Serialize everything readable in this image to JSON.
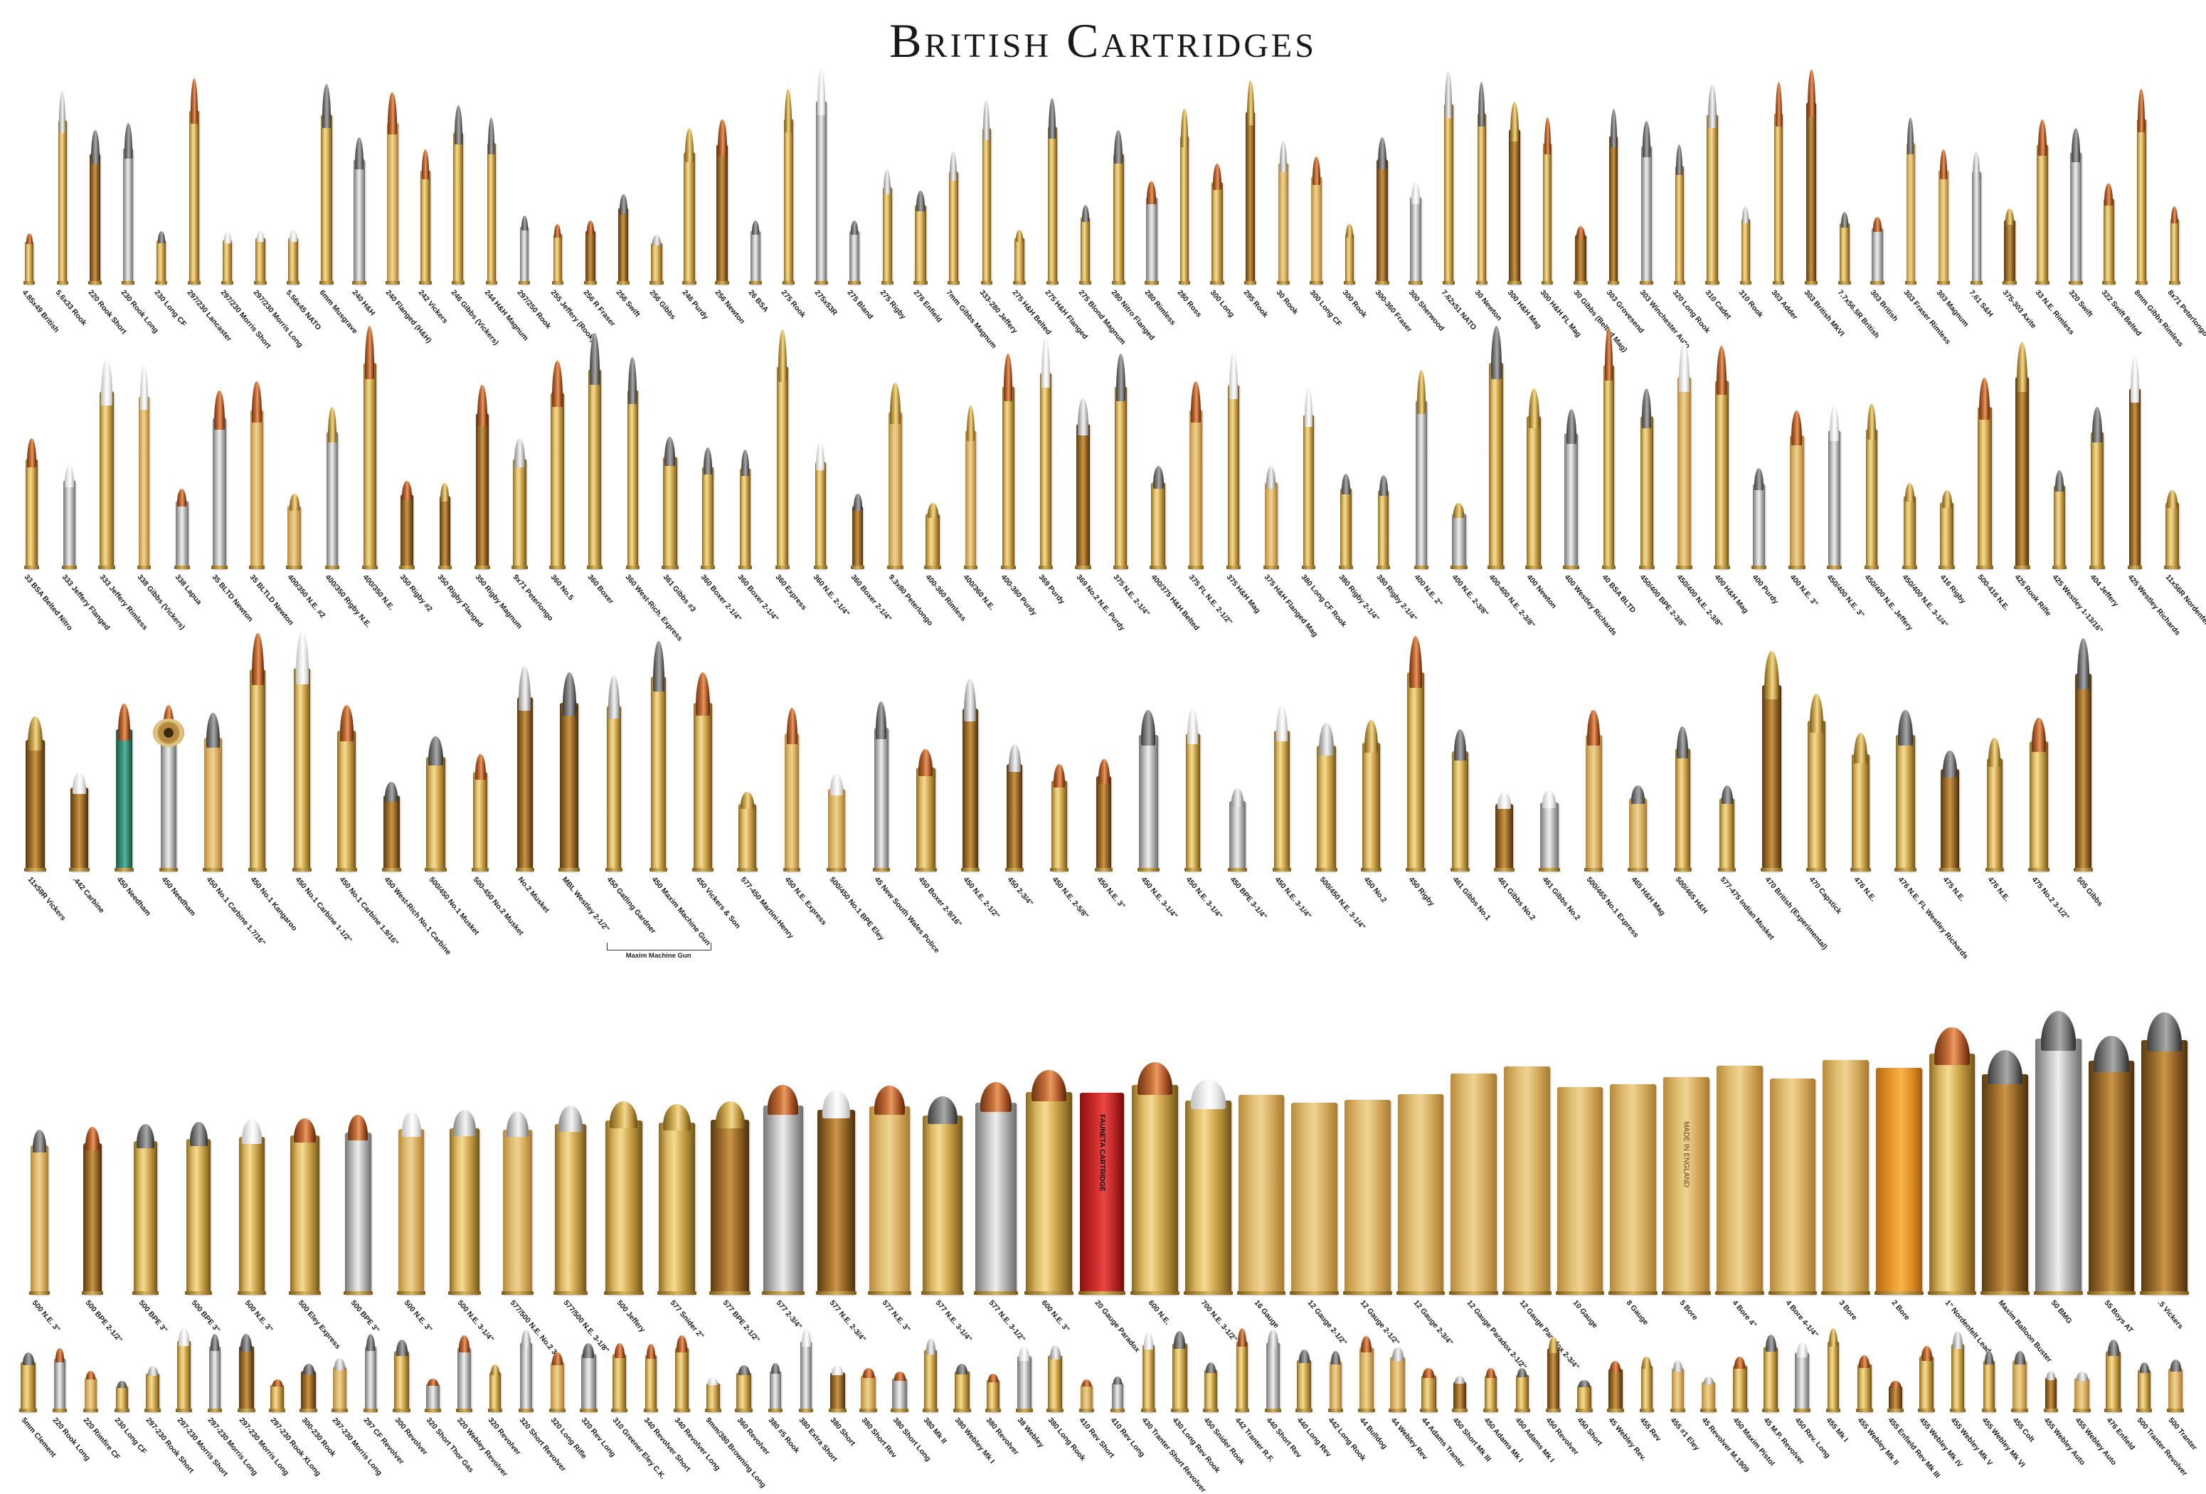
{
  "title": "British Cartridges",
  "rows": [
    {
      "id": "row1",
      "items": [
        {
          "label": "4.85x49 British"
        },
        {
          "label": "5.6x33 Rook"
        },
        {
          "label": "220 Rook Short"
        },
        {
          "label": "230 Rook Long"
        },
        {
          "label": "230 Long CF"
        },
        {
          "label": "297/230 Lancaster"
        },
        {
          "label": "297/230 Morris Short"
        },
        {
          "label": "297/230 Morris Long"
        },
        {
          "label": "5.56x45 NATO"
        },
        {
          "label": "6mm Musgrave"
        },
        {
          "label": "240 H&H"
        },
        {
          "label": "240 Flanged (H&H)"
        },
        {
          "label": "242 Vickers"
        },
        {
          "label": "246 Gibbs (Vickers)"
        },
        {
          "label": "244 H&H Magnum"
        },
        {
          "label": "297/250 Rook"
        },
        {
          "label": "255 Jeffery (Rook)"
        },
        {
          "label": "256 R Fraser"
        },
        {
          "label": "256 Swift"
        },
        {
          "label": "256 Gibbs"
        },
        {
          "label": "246 Purdy"
        },
        {
          "label": "256 Newton"
        },
        {
          "label": "26 BSA"
        },
        {
          "label": "275 Rook"
        },
        {
          "label": "275x53R"
        },
        {
          "label": "275 Bland"
        },
        {
          "label": "275 Rigby"
        },
        {
          "label": "276 Enfield"
        },
        {
          "label": "7mm Gibbs Magnum"
        },
        {
          "label": "333-280 Jeffery"
        },
        {
          "label": "275 H&H Belted"
        },
        {
          "label": "275 H&H Flanged"
        },
        {
          "label": "275 Blond Magnum"
        },
        {
          "label": "280 Nitro Flanged"
        },
        {
          "label": "280 Rimless"
        },
        {
          "label": "280 Ross"
        },
        {
          "label": "300 Long"
        },
        {
          "label": "295 Rook"
        },
        {
          "label": "30 Rook"
        },
        {
          "label": "300 Long CF"
        },
        {
          "label": "300 Rook"
        },
        {
          "label": "300-360 Fraser"
        },
        {
          "label": "300 Sherwood"
        },
        {
          "label": "7.62x51 NATO"
        },
        {
          "label": "30 Newton"
        },
        {
          "label": "300 H&H Mag"
        },
        {
          "label": "300 H&H FL Mag"
        },
        {
          "label": "30 Gibbs (Belted Mag)"
        },
        {
          "label": "303 Grovesend"
        },
        {
          "label": "303 Winchester Auto"
        },
        {
          "label": "320 Long Rook"
        },
        {
          "label": "310 Cadet"
        },
        {
          "label": "310 Rook"
        },
        {
          "label": "303 Adder"
        },
        {
          "label": "303 British MkVI"
        },
        {
          "label": "7.7x56.5R British"
        },
        {
          "label": "303 British"
        },
        {
          "label": "303 Fraser Rimless"
        },
        {
          "label": "303 Magnum"
        },
        {
          "label": "7.61 S&H"
        },
        {
          "label": "375-303 Axite"
        },
        {
          "label": "33 N.E. Rimless"
        },
        {
          "label": "320 Swift"
        },
        {
          "label": "322 Swift Belted"
        },
        {
          "label": "8mm Gibbs Rimless"
        },
        {
          "label": "8x71 Peterlongo"
        }
      ]
    },
    {
      "id": "row2",
      "items": [
        {
          "label": "33 BSA Belted Nitro"
        },
        {
          "label": "333 Jeffery Flanged"
        },
        {
          "label": "333 Jeffery Rimless"
        },
        {
          "label": "338 Gibbs (Vickers)"
        },
        {
          "label": "338 Lapua"
        },
        {
          "label": "35 BLTD Newton"
        },
        {
          "label": "35 BLTLD Newton"
        },
        {
          "label": "400/350 N.E. #2"
        },
        {
          "label": "400/350 Rigby N.E."
        },
        {
          "label": "400/350 N.E."
        },
        {
          "label": "350 Rigby #2"
        },
        {
          "label": "350 Rigby Flanged"
        },
        {
          "label": "350 Rigby Magnum"
        },
        {
          "label": "9x71 Peterlongo"
        },
        {
          "label": "360 No.5"
        },
        {
          "label": "360 Boxer"
        },
        {
          "label": "360 West-Rich. Express"
        },
        {
          "label": "361 Gibbs #3"
        },
        {
          "label": "360 Boxer 2-1/4\""
        },
        {
          "label": "360 Boxer 2-1/4\""
        },
        {
          "label": "360 Express"
        },
        {
          "label": "360 N.E. 2-1/4\""
        },
        {
          "label": "360 Boxer 2-1/4\""
        },
        {
          "label": "9.3x80 Peterlongo"
        },
        {
          "label": "400-360 Rimless"
        },
        {
          "label": "400/360 N.E."
        },
        {
          "label": "400-360 Purdy"
        },
        {
          "label": "369 Purdy"
        },
        {
          "label": "369 No.2 N.E. Purdy"
        },
        {
          "label": "375 N.E. 2-1/4\""
        },
        {
          "label": "400/375 H&H Belted"
        },
        {
          "label": "375 FL N.E. 2-1/2\""
        },
        {
          "label": "375 H&H Mag"
        },
        {
          "label": "375 H&H Flanged Mag"
        },
        {
          "label": "380 Long CF Rook"
        },
        {
          "label": "380 Rigby 2-1/4\""
        },
        {
          "label": "380 Rigby 2-1/4\""
        },
        {
          "label": "400 N.E. 2\""
        },
        {
          "label": "400 N.E. 2-3/8\""
        },
        {
          "label": "400-400 N.E. 2-3/8\""
        },
        {
          "label": "400 Newton"
        },
        {
          "label": "400 Westley Richards"
        },
        {
          "label": "40 BSA BLTD"
        },
        {
          "label": "450/400 BPE 2-3/8\""
        },
        {
          "label": "450/400 N.E. 2-3/8\""
        },
        {
          "label": "400 H&H Mag"
        },
        {
          "label": "400 Purdy"
        },
        {
          "label": "400 N.E. 3\""
        },
        {
          "label": "450/400 N.E. 3\""
        },
        {
          "label": "450/400 N.E. Jeffery"
        },
        {
          "label": "450/400 N.E. 3-1/4\""
        },
        {
          "label": "416 Rigby"
        },
        {
          "label": "500-416 N.E."
        },
        {
          "label": "425 Rook Rifle"
        },
        {
          "label": "425 Westley 1-13/16\""
        },
        {
          "label": "404 Jeffery"
        },
        {
          "label": "425 Westley Richards"
        },
        {
          "label": "11x56R Nordenfelt"
        }
      ]
    },
    {
      "id": "row3",
      "items": [
        {
          "label": "11x59R Vickers"
        },
        {
          "label": ".442 Carbine"
        },
        {
          "label": "450 Needham"
        },
        {
          "label": "450 Needham"
        },
        {
          "label": "450 No.1 Carbine 1.7/16\""
        },
        {
          "label": "450 No.1 Kangaroo"
        },
        {
          "label": "450 No.1 Carbine 1-1/2\""
        },
        {
          "label": "450 No.1 Carbine 1.9/16\""
        },
        {
          "label": "450 West-Rich No.1 Carbine"
        },
        {
          "label": "500/450 No.1 Musket"
        },
        {
          "label": "500-450 No.2 Musket"
        },
        {
          "label": "No.2 Musket"
        },
        {
          "label": "MBL Westley 2-1/2\""
        },
        {
          "label": "450 Gatling Gardner"
        },
        {
          "label": "450 Maxim Machine Gun"
        },
        {
          "label": "450 Vickers & Son"
        },
        {
          "label": "577-450 Martini-Henry"
        },
        {
          "label": "450 N.E. Express"
        },
        {
          "label": "500/450 No.1 BPE Eley"
        },
        {
          "label": "45 New South Wales Police"
        },
        {
          "label": "450 Boxer 2-9/16\""
        },
        {
          "label": "450 N.E. 2-1/2\""
        },
        {
          "label": "450 2-3/4\""
        },
        {
          "label": "450 N.E. 2-5/8\""
        },
        {
          "label": "450 N.E. 3\""
        },
        {
          "label": "450 N.E. 3-1/4\""
        },
        {
          "label": "450 N.E. 3-1/4\""
        },
        {
          "label": "450 BPE 3-1/4\""
        },
        {
          "label": "450 N.E. 3-1/4\""
        },
        {
          "label": "500/450 N.E. 3-1/4\""
        },
        {
          "label": "450 No.2"
        },
        {
          "label": "450 Rigby"
        },
        {
          "label": "461 Gibbs No.1"
        },
        {
          "label": "461 Gibbs No.2"
        },
        {
          "label": "461 Gibbs No.2"
        },
        {
          "label": "500/465 No.1 Express"
        },
        {
          "label": "465 H&H Mag"
        },
        {
          "label": "500/465 H&H"
        },
        {
          "label": "577-475 Indian Musket"
        },
        {
          "label": "470 British (Experimental)"
        },
        {
          "label": "470 Capstick"
        },
        {
          "label": "476 N.E."
        },
        {
          "label": "476 N.E. FL Westley Richards"
        },
        {
          "label": "475 N.E."
        },
        {
          "label": "476 N.E."
        },
        {
          "label": "475 No.2 3-1/2\""
        },
        {
          "label": "505 Gibbs"
        }
      ],
      "bracket_label": "Maxim Machine Gun"
    },
    {
      "id": "row4",
      "items": [
        {
          "label": "500 N.E. 3\""
        },
        {
          "label": "500 BPE 2-1/2\""
        },
        {
          "label": "500 BPE 3\""
        },
        {
          "label": "500 BPE 3\""
        },
        {
          "label": "500 N.E. 3\""
        },
        {
          "label": "500 Eley Express"
        },
        {
          "label": "500 BPE 3\""
        },
        {
          "label": "500 N.E. 3\""
        },
        {
          "label": "500 N.E. 3-1/4\""
        },
        {
          "label": "577/500 N.E. No.2 3\""
        },
        {
          "label": "577/500 N.E. 3-1/8\""
        },
        {
          "label": "500 Jeffery"
        },
        {
          "label": "577 Snider 2\""
        },
        {
          "label": "577 BPE 2-1/2\""
        },
        {
          "label": "577 2-3/4\""
        },
        {
          "label": "577 N.E. 2-3/4\""
        },
        {
          "label": "577 N.E. 3\""
        },
        {
          "label": "577 N.E. 3-1/4\""
        },
        {
          "label": "577 N.E. 3-1/2\""
        },
        {
          "label": "600 N.E. 3\""
        },
        {
          "label": "20 Gauge Paradox"
        },
        {
          "label": "600 N.E."
        },
        {
          "label": "700 N.E. 3-1/2\""
        },
        {
          "label": "16 Gauge"
        },
        {
          "label": "12 Gauge 2-1/2\""
        },
        {
          "label": "12 Gauge 2-1/2\""
        },
        {
          "label": "12 Gauge 2-3/4\""
        },
        {
          "label": "12 Gauge Paradox 2-1/2\""
        },
        {
          "label": "12 Gauge Paradox 2-3/4\""
        },
        {
          "label": "10 Gauge"
        },
        {
          "label": "8 Gauge"
        },
        {
          "label": "5 Bore"
        },
        {
          "label": "4 Bore 4\""
        },
        {
          "label": "4 Bore 4-1/4\""
        },
        {
          "label": "3 Bore"
        },
        {
          "label": "2 Bore"
        },
        {
          "label": "1\" Nordenfelt Lead"
        },
        {
          "label": "Maxim Balloon Buster"
        },
        {
          "label": "50 BMG"
        },
        {
          "label": "55 Boys AT"
        },
        {
          "label": ".5 Vickers"
        }
      ]
    },
    {
      "id": "row5",
      "items": [
        {
          "label": "5mm Clement"
        },
        {
          "label": "220 Rook Long"
        },
        {
          "label": "220 Rimfire CF"
        },
        {
          "label": "230 Long CF"
        },
        {
          "label": "297-230 Rook Short"
        },
        {
          "label": "297-230 Morris Short"
        },
        {
          "label": "297-230 Morris Long"
        },
        {
          "label": "297-230 Morris Long"
        },
        {
          "label": "297-230 Rook XLong"
        },
        {
          "label": "300-230 Rook"
        },
        {
          "label": "297-230 Morris Long"
        },
        {
          "label": "297 CF Revolver"
        },
        {
          "label": "300 Revolver"
        },
        {
          "label": "320 Short Thor Gas"
        },
        {
          "label": "320 Webley Revolver"
        },
        {
          "label": "320 Revolver"
        },
        {
          "label": "320 Short Revolver"
        },
        {
          "label": "320 Long Rifle"
        },
        {
          "label": "320 Rev Long"
        },
        {
          "label": "310 Greener Eley C.K."
        },
        {
          "label": "340 Revolver Short"
        },
        {
          "label": "340 Revolver Long"
        },
        {
          "label": "9mm/380 Browning Long"
        },
        {
          "label": "360 Revolver"
        },
        {
          "label": "380 #5 Rook"
        },
        {
          "label": "380 Extra Short"
        },
        {
          "label": "380 Short"
        },
        {
          "label": "380 Short Rev"
        },
        {
          "label": "380 Short Long"
        },
        {
          "label": "380 Mk II"
        },
        {
          "label": "380 Webley Mk I"
        },
        {
          "label": "380 Revolver"
        },
        {
          "label": "38 Webley"
        },
        {
          "label": "380 Long Rook"
        },
        {
          "label": "410 Rev Short"
        },
        {
          "label": "410 Rev Long"
        },
        {
          "label": "430 Tranter Short Revolver"
        },
        {
          "label": "430 Long Rev Rook"
        },
        {
          "label": "450 Snider Rook"
        },
        {
          "label": "442 Tranter R.F."
        },
        {
          "label": "440 Short Rev"
        },
        {
          "label": "440 Long Rev"
        },
        {
          "label": "442 Long Rook"
        },
        {
          "label": "44 Bulldog"
        },
        {
          "label": "44 Webley Rev"
        },
        {
          "label": "44 Adams Tranter"
        },
        {
          "label": "450 Short Mk III"
        },
        {
          "label": "450 Adams Mk I"
        },
        {
          "label": "450 Adams Mk I"
        },
        {
          "label": "450 Revolver"
        },
        {
          "label": "450 Short"
        },
        {
          "label": "45 Webley Rev."
        },
        {
          "label": "455 Rev"
        },
        {
          "label": "455 #1 Eley"
        },
        {
          "label": "45 Revolver M.1909"
        },
        {
          "label": "450 Maxim Pistol"
        },
        {
          "label": "45 M.P. Revolver"
        },
        {
          "label": "450 Rev. Long"
        },
        {
          "label": "455 Mk I"
        },
        {
          "label": "455 Webley Mk II"
        },
        {
          "label": "455 Enfield Rev Mk III"
        },
        {
          "label": "455 Webley Mk IV"
        },
        {
          "label": "455 Webley Mk V"
        },
        {
          "label": "455 Webley Mk VI"
        },
        {
          "label": "455 Colt"
        },
        {
          "label": "455 Webley Auto"
        },
        {
          "label": "455 Webley Auto"
        },
        {
          "label": "476 Enfield"
        },
        {
          "label": "500 Tranter Revolver"
        },
        {
          "label": "500 Tranter"
        }
      ]
    }
  ],
  "faunetta_text": "FAUNETA CARTRIDGE",
  "made_in_england_text": "MADE IN ENGLAND"
}
